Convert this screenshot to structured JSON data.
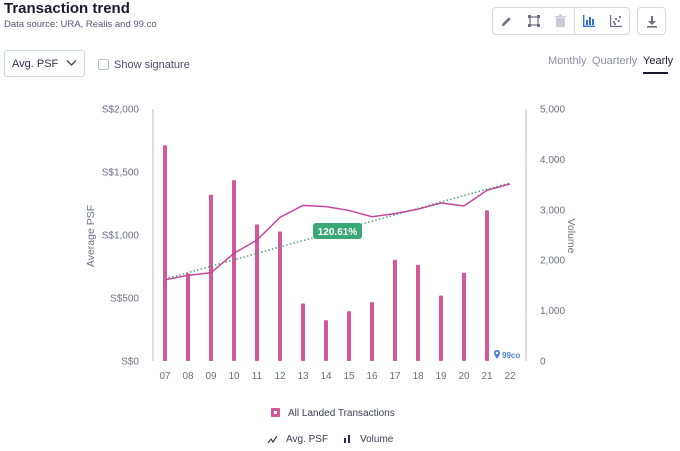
{
  "header": {
    "title": "Transaction trend",
    "subtitle": "Data source: URA, Realis and 99.co"
  },
  "toolbar": {
    "icons": [
      "pencil-icon",
      "crop-icon",
      "trash-icon",
      "bar-chart-icon",
      "scatter-plot-icon",
      "download-icon"
    ]
  },
  "controls": {
    "metric_select": "Avg. PSF",
    "show_signature_label": "Show signature",
    "periods": [
      "Monthly",
      "Quarterly",
      "Yearly"
    ],
    "active_period": "Yearly"
  },
  "colors": {
    "bar": "#d6589c",
    "avg_line": "#c4469a",
    "trend_line": "#3f9f6f",
    "badge": "#3aa876",
    "volume_icon": "#1f2a55"
  },
  "chart_data": {
    "type": "bar",
    "categories": [
      "07",
      "08",
      "09",
      "10",
      "11",
      "12",
      "13",
      "14",
      "15",
      "16",
      "17",
      "18",
      "19",
      "20",
      "21",
      "22"
    ],
    "ylabel": "Average PSF",
    "y2label": "Volume",
    "ylim": [
      0,
      2000
    ],
    "y2lim": [
      0,
      5000
    ],
    "yticks": [
      "S$0",
      "S$500",
      "S$1,000",
      "S$1,500",
      "S$2,000"
    ],
    "y2ticks": [
      "0",
      "1,000",
      "2,000",
      "3,000",
      "4,000",
      "5,000"
    ],
    "series": [
      {
        "name": "All Landed Transactions",
        "kind": "bar",
        "axis": "y2",
        "values": [
          4280,
          1740,
          3300,
          3590,
          2710,
          2570,
          1140,
          810,
          990,
          1170,
          2010,
          1910,
          1300,
          1750,
          2990,
          null
        ]
      },
      {
        "name": "Avg. PSF",
        "kind": "line",
        "axis": "y",
        "values": [
          645,
          680,
          700,
          855,
          960,
          1140,
          1235,
          1225,
          1195,
          1145,
          1170,
          1205,
          1255,
          1230,
          1355,
          1405
        ]
      },
      {
        "name": "trend",
        "kind": "dotted-line",
        "axis": "y",
        "start": 650,
        "end": 1415
      }
    ],
    "annotation": "120.61%",
    "watermark": "99co",
    "legend": {
      "transactions": "All Landed Transactions",
      "avg_psf": "Avg. PSF",
      "volume": "Volume"
    },
    "grid": false
  }
}
